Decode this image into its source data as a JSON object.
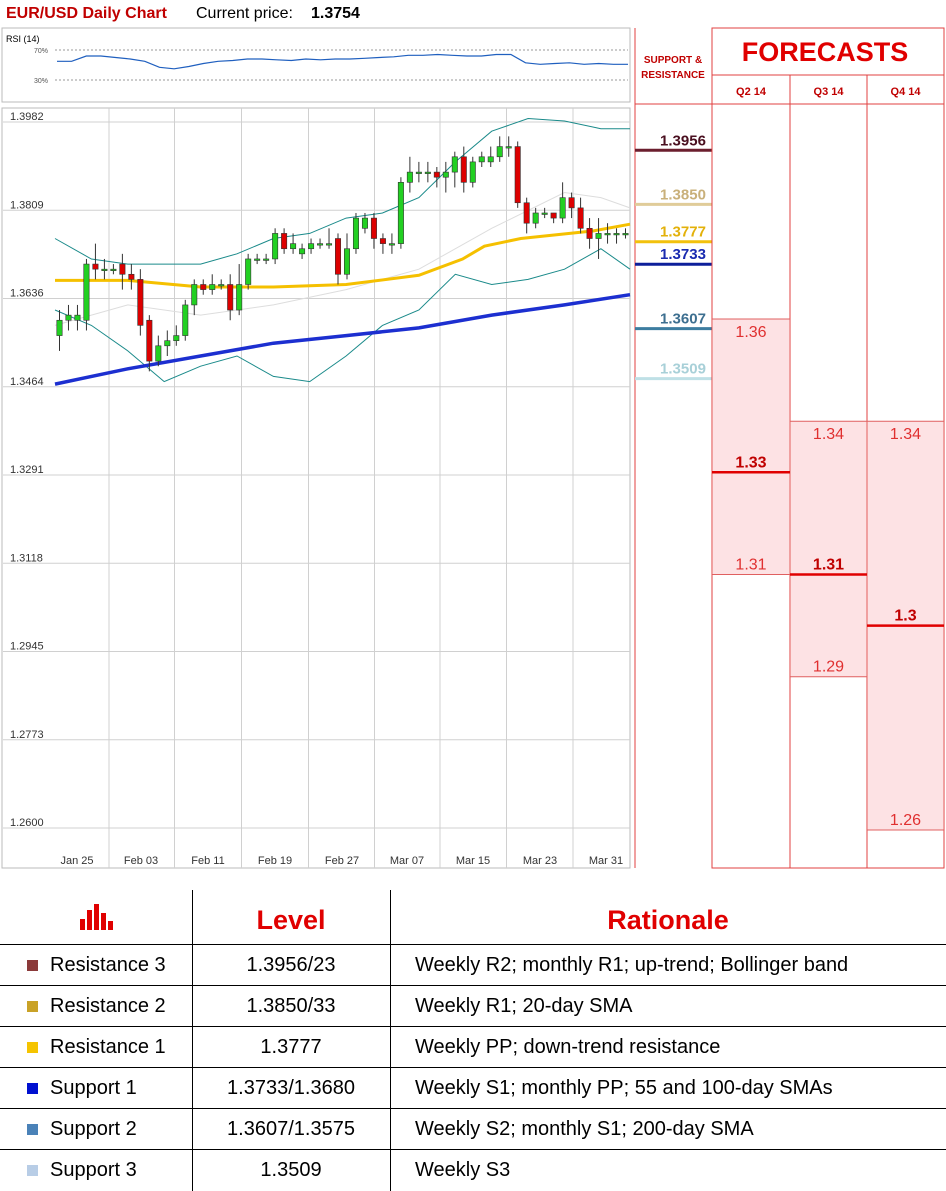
{
  "header": {
    "title": "EUR/USD Daily Chart",
    "price_label": "Current price:",
    "price_value": "1.3754"
  },
  "rsi": {
    "label": "RSI (14)",
    "level_high": "70%",
    "level_low": "30%",
    "values": [
      55,
      55,
      62,
      62,
      60,
      58,
      55,
      47,
      45,
      48,
      52,
      55,
      56,
      58,
      58,
      57,
      56,
      58,
      57,
      58,
      58,
      59,
      60,
      61,
      63,
      63,
      64,
      63,
      62,
      62,
      64,
      64,
      53,
      51,
      52,
      53,
      51,
      52,
      51,
      51
    ]
  },
  "chart_data": {
    "type": "candlestick",
    "title": "EUR/USD Daily Chart",
    "y_ticks": [
      "1.3982",
      "1.3809",
      "1.3636",
      "1.3464",
      "1.3291",
      "1.3118",
      "1.2945",
      "1.2773",
      "1.2600"
    ],
    "ylim": [
      1.26,
      1.3982
    ],
    "x_ticks": [
      "Jan 25",
      "Feb 03",
      "Feb 11",
      "Feb 19",
      "Feb 27",
      "Mar 07",
      "Mar 15",
      "Mar 23",
      "Mar 31"
    ],
    "candles": [
      [
        1.356,
        1.359,
        1.353,
        1.361
      ],
      [
        1.359,
        1.36,
        1.357,
        1.362
      ],
      [
        1.359,
        1.36,
        1.357,
        1.362
      ],
      [
        1.359,
        1.37,
        1.357,
        1.371
      ],
      [
        1.37,
        1.369,
        1.367,
        1.374
      ],
      [
        1.369,
        1.369,
        1.367,
        1.371
      ],
      [
        1.369,
        1.369,
        1.368,
        1.37
      ],
      [
        1.37,
        1.368,
        1.365,
        1.372
      ],
      [
        1.368,
        1.367,
        1.365,
        1.37
      ],
      [
        1.367,
        1.358,
        1.356,
        1.369
      ],
      [
        1.359,
        1.351,
        1.349,
        1.36
      ],
      [
        1.351,
        1.354,
        1.35,
        1.356
      ],
      [
        1.354,
        1.355,
        1.352,
        1.357
      ],
      [
        1.355,
        1.356,
        1.354,
        1.358
      ],
      [
        1.356,
        1.362,
        1.355,
        1.363
      ],
      [
        1.362,
        1.366,
        1.36,
        1.367
      ],
      [
        1.366,
        1.365,
        1.364,
        1.367
      ],
      [
        1.365,
        1.366,
        1.364,
        1.368
      ],
      [
        1.366,
        1.366,
        1.365,
        1.367
      ],
      [
        1.366,
        1.361,
        1.359,
        1.368
      ],
      [
        1.361,
        1.366,
        1.36,
        1.37
      ],
      [
        1.366,
        1.371,
        1.365,
        1.372
      ],
      [
        1.371,
        1.371,
        1.37,
        1.372
      ],
      [
        1.371,
        1.371,
        1.37,
        1.372
      ],
      [
        1.371,
        1.376,
        1.37,
        1.377
      ],
      [
        1.376,
        1.373,
        1.372,
        1.377
      ],
      [
        1.373,
        1.374,
        1.372,
        1.376
      ],
      [
        1.372,
        1.373,
        1.371,
        1.374
      ],
      [
        1.373,
        1.374,
        1.372,
        1.375
      ],
      [
        1.374,
        1.374,
        1.373,
        1.375
      ],
      [
        1.374,
        1.374,
        1.373,
        1.377
      ],
      [
        1.375,
        1.368,
        1.366,
        1.376
      ],
      [
        1.368,
        1.373,
        1.367,
        1.376
      ],
      [
        1.373,
        1.379,
        1.372,
        1.38
      ],
      [
        1.377,
        1.379,
        1.376,
        1.38
      ],
      [
        1.379,
        1.375,
        1.373,
        1.38
      ],
      [
        1.375,
        1.374,
        1.372,
        1.376
      ],
      [
        1.374,
        1.374,
        1.372,
        1.376
      ],
      [
        1.374,
        1.386,
        1.373,
        1.387
      ],
      [
        1.386,
        1.388,
        1.384,
        1.391
      ],
      [
        1.388,
        1.388,
        1.386,
        1.39
      ],
      [
        1.388,
        1.388,
        1.386,
        1.39
      ],
      [
        1.388,
        1.387,
        1.385,
        1.389
      ],
      [
        1.387,
        1.388,
        1.384,
        1.39
      ],
      [
        1.388,
        1.391,
        1.385,
        1.392
      ],
      [
        1.391,
        1.386,
        1.384,
        1.393
      ],
      [
        1.386,
        1.39,
        1.385,
        1.391
      ],
      [
        1.39,
        1.391,
        1.389,
        1.392
      ],
      [
        1.39,
        1.391,
        1.389,
        1.393
      ],
      [
        1.391,
        1.393,
        1.39,
        1.395
      ],
      [
        1.393,
        1.393,
        1.391,
        1.395
      ],
      [
        1.393,
        1.382,
        1.381,
        1.394
      ],
      [
        1.382,
        1.378,
        1.376,
        1.383
      ],
      [
        1.378,
        1.38,
        1.377,
        1.381
      ],
      [
        1.38,
        1.38,
        1.379,
        1.381
      ],
      [
        1.38,
        1.379,
        1.378,
        1.38
      ],
      [
        1.379,
        1.383,
        1.378,
        1.386
      ],
      [
        1.383,
        1.381,
        1.379,
        1.384
      ],
      [
        1.381,
        1.377,
        1.376,
        1.383
      ],
      [
        1.377,
        1.375,
        1.373,
        1.379
      ],
      [
        1.375,
        1.376,
        1.371,
        1.379
      ],
      [
        1.376,
        1.376,
        1.374,
        1.378
      ],
      [
        1.376,
        1.376,
        1.374,
        1.377
      ],
      [
        1.376,
        1.376,
        1.375,
        1.377
      ]
    ],
    "sma_yellow": [
      [
        0,
        1.3668
      ],
      [
        10,
        1.3668
      ],
      [
        20,
        1.3655
      ],
      [
        30,
        1.3655
      ],
      [
        40,
        1.366
      ],
      [
        50,
        1.3678
      ],
      [
        56,
        1.371
      ],
      [
        59,
        1.3735
      ],
      [
        64,
        1.375
      ],
      [
        74,
        1.3765
      ],
      [
        79,
        1.3778
      ]
    ],
    "sma_blue": [
      [
        0,
        1.3465
      ],
      [
        10,
        1.3495
      ],
      [
        20,
        1.352
      ],
      [
        30,
        1.3545
      ],
      [
        40,
        1.356
      ],
      [
        50,
        1.3575
      ],
      [
        60,
        1.36
      ],
      [
        70,
        1.362
      ],
      [
        79,
        1.364
      ]
    ],
    "sma_grey": [
      [
        0,
        1.358
      ],
      [
        10,
        1.362
      ],
      [
        20,
        1.36
      ],
      [
        30,
        1.362
      ],
      [
        40,
        1.365
      ],
      [
        50,
        1.369
      ],
      [
        60,
        1.377
      ],
      [
        70,
        1.384
      ],
      [
        75,
        1.383
      ],
      [
        79,
        1.381
      ]
    ],
    "bb_upper": [
      [
        0,
        1.375
      ],
      [
        5,
        1.371
      ],
      [
        10,
        1.37
      ],
      [
        15,
        1.37
      ],
      [
        20,
        1.37
      ],
      [
        25,
        1.372
      ],
      [
        30,
        1.375
      ],
      [
        35,
        1.376
      ],
      [
        40,
        1.379
      ],
      [
        45,
        1.38
      ],
      [
        50,
        1.383
      ],
      [
        55,
        1.39
      ],
      [
        60,
        1.396
      ],
      [
        65,
        1.3985
      ],
      [
        70,
        1.398
      ],
      [
        75,
        1.3965
      ],
      [
        79,
        1.3965
      ]
    ],
    "bb_lower": [
      [
        0,
        1.361
      ],
      [
        5,
        1.358
      ],
      [
        10,
        1.353
      ],
      [
        15,
        1.347
      ],
      [
        20,
        1.35
      ],
      [
        25,
        1.352
      ],
      [
        30,
        1.348
      ],
      [
        35,
        1.347
      ],
      [
        40,
        1.352
      ],
      [
        45,
        1.358
      ],
      [
        50,
        1.361
      ],
      [
        55,
        1.368
      ],
      [
        60,
        1.366
      ],
      [
        65,
        1.367
      ],
      [
        70,
        1.369
      ],
      [
        75,
        1.373
      ],
      [
        79,
        1.369
      ]
    ]
  },
  "sr_panel": {
    "header": [
      "SUPPORT &",
      "RESISTANCE"
    ],
    "levels": [
      {
        "label": "1.3956",
        "value": 1.3956,
        "color": "#6b1e2e",
        "text_color": "#4a1020",
        "line": true
      },
      {
        "label": "1.3850",
        "value": 1.385,
        "color": "#e0cc99",
        "text_color": "#c9b07a",
        "line": true
      },
      {
        "label": "1.3777",
        "value": 1.3777,
        "color": "#f2c10d",
        "text_color": "#e3b10a",
        "line": true
      },
      {
        "label": "1.3733",
        "value": 1.3733,
        "color": "#0d1f9a",
        "text_color": "#1a2bb0",
        "line": true
      },
      {
        "label": "1.3607",
        "value": 1.3607,
        "color": "#3d7da0",
        "text_color": "#3d6f90",
        "line": true
      },
      {
        "label": "1.3509",
        "value": 1.3509,
        "color": "#bfe0e6",
        "text_color": "#a8d0d8",
        "line": true
      }
    ]
  },
  "forecasts": {
    "title": "FORECASTS",
    "columns": [
      {
        "quarter": "Q2 14",
        "high": "1.36",
        "high_val": 1.36,
        "mid": "1.33",
        "mid_val": 1.33,
        "low": "1.31",
        "low_val": 1.31
      },
      {
        "quarter": "Q3 14",
        "high": "1.34",
        "high_val": 1.34,
        "mid": "1.31",
        "mid_val": 1.31,
        "low": "1.29",
        "low_val": 1.29
      },
      {
        "quarter": "Q4 14",
        "high": "1.34",
        "high_val": 1.34,
        "mid": "1.3",
        "mid_val": 1.3,
        "low": "1.26",
        "low_val": 1.26
      }
    ]
  },
  "table": {
    "header": {
      "level": "Level",
      "rationale": "Rationale"
    },
    "rows": [
      {
        "name": "Resistance 3",
        "color": "#8b3a3a",
        "level": "1.3956/23",
        "rationale": "Weekly R2; monthly R1; up-trend; Bollinger band"
      },
      {
        "name": "Resistance 2",
        "color": "#c9a227",
        "level": "1.3850/33",
        "rationale": "Weekly R1; 20-day SMA"
      },
      {
        "name": "Resistance 1",
        "color": "#f5c400",
        "level": "1.3777",
        "rationale": "Weekly PP; down-trend resistance"
      },
      {
        "name": "Support 1",
        "color": "#0010d0",
        "level": "1.3733/1.3680",
        "rationale": "Weekly S1; monthly PP; 55 and 100-day SMAs"
      },
      {
        "name": "Support 2",
        "color": "#4a82b8",
        "level": "1.3607/1.3575",
        "rationale": "Weekly S2; monthly S1; 200-day SMA"
      },
      {
        "name": "Support 3",
        "color": "#b8cde6",
        "level": "1.3509",
        "rationale": "Weekly S3"
      }
    ]
  }
}
